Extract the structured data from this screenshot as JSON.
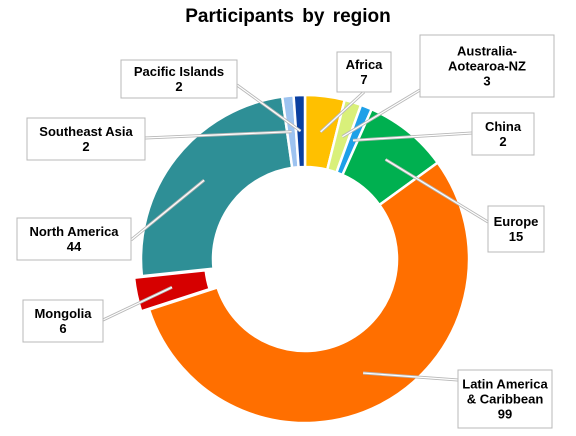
{
  "chart_data": {
    "type": "pie",
    "style": "donut",
    "title": "Participants by region",
    "series": [
      {
        "name": "Africa",
        "value": 7,
        "color": "#FFC000"
      },
      {
        "name": "Australia-Aotearoa-NZ",
        "value": 3,
        "color": "#D9F07A"
      },
      {
        "name": "China",
        "value": 2,
        "color": "#1EA0E8"
      },
      {
        "name": "Europe",
        "value": 15,
        "color": "#00B050"
      },
      {
        "name": "Latin America & Caribbean",
        "value": 99,
        "color": "#FF6F00"
      },
      {
        "name": "Mongolia",
        "value": 6,
        "color": "#D60000"
      },
      {
        "name": "North America",
        "value": 44,
        "color": "#2E8F96"
      },
      {
        "name": "Southeast Asia",
        "value": 2,
        "color": "#9DC3F0"
      },
      {
        "name": "Pacific Islands",
        "value": 2,
        "color": "#0A3FA0"
      }
    ],
    "labels": [
      {
        "lines": [
          "Africa"
        ],
        "value": "7"
      },
      {
        "lines": [
          "Australia-",
          "Aotearoa-NZ"
        ],
        "value": "3"
      },
      {
        "lines": [
          "China"
        ],
        "value": "2"
      },
      {
        "lines": [
          "Europe"
        ],
        "value": "15"
      },
      {
        "lines": [
          "Latin America",
          "& Caribbean"
        ],
        "value": "99"
      },
      {
        "lines": [
          "Mongolia"
        ],
        "value": "6"
      },
      {
        "lines": [
          "North America"
        ],
        "value": "44"
      },
      {
        "lines": [
          "Southeast Asia"
        ],
        "value": "2"
      },
      {
        "lines": [
          "Pacific Islands"
        ],
        "value": "2"
      }
    ]
  }
}
